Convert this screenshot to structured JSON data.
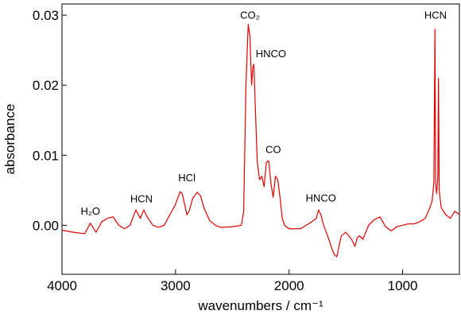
{
  "chart_data": {
    "type": "line",
    "xlabel": "wavenumbers / cm⁻¹",
    "ylabel": "absorbance",
    "x": [
      4000,
      3900,
      3800,
      3750,
      3700,
      3650,
      3600,
      3550,
      3500,
      3450,
      3400,
      3350,
      3310,
      3280,
      3250,
      3200,
      3150,
      3100,
      3050,
      3000,
      2960,
      2940,
      2920,
      2900,
      2880,
      2850,
      2810,
      2780,
      2750,
      2700,
      2650,
      2600,
      2500,
      2420,
      2400,
      2380,
      2360,
      2345,
      2330,
      2320,
      2310,
      2300,
      2280,
      2260,
      2240,
      2220,
      2200,
      2180,
      2160,
      2140,
      2120,
      2100,
      2080,
      2060,
      2040,
      2000,
      1950,
      1900,
      1850,
      1800,
      1760,
      1740,
      1720,
      1700,
      1650,
      1620,
      1600,
      1580,
      1560,
      1540,
      1500,
      1450,
      1420,
      1400,
      1380,
      1350,
      1300,
      1250,
      1200,
      1150,
      1100,
      1050,
      1000,
      950,
      900,
      850,
      800,
      760,
      740,
      725,
      715,
      710,
      700,
      690,
      684,
      678,
      660,
      620,
      580,
      540,
      500
    ],
    "series": [
      {
        "name": "absorbance",
        "color": "#e00000",
        "values": [
          -0.0007,
          -0.001,
          -0.0012,
          0.0003,
          -0.001,
          0.0005,
          0.001,
          0.0012,
          0.0,
          -0.0005,
          0.0,
          0.0022,
          0.001,
          0.0022,
          0.0012,
          0.0,
          -0.0003,
          0.0,
          0.0015,
          0.003,
          0.0048,
          0.0045,
          0.003,
          0.0015,
          0.002,
          0.0038,
          0.0047,
          0.0042,
          0.0025,
          0.0007,
          0.0,
          -0.0003,
          -0.0002,
          0.0,
          0.002,
          0.02,
          0.0287,
          0.027,
          0.02,
          0.0225,
          0.023,
          0.018,
          0.009,
          0.0065,
          0.007,
          0.0055,
          0.009,
          0.0092,
          0.006,
          0.004,
          0.007,
          0.0065,
          0.004,
          0.001,
          0.0,
          -0.0005,
          -0.0005,
          -0.0005,
          0.0,
          0.0005,
          0.001,
          0.0022,
          0.0015,
          0.0002,
          -0.002,
          -0.0035,
          -0.0042,
          -0.0045,
          -0.003,
          -0.0015,
          -0.001,
          -0.002,
          -0.003,
          -0.0018,
          -0.0015,
          -0.002,
          0.0,
          0.0008,
          0.0012,
          -0.0002,
          -0.0008,
          -0.0002,
          0.0,
          0.0002,
          0.0002,
          0.0005,
          0.001,
          0.0025,
          0.0035,
          0.006,
          0.028,
          0.006,
          0.0045,
          0.007,
          0.021,
          0.005,
          0.0025,
          0.0015,
          0.001,
          0.002,
          0.0015
        ]
      }
    ],
    "xlim": [
      4000,
      500
    ],
    "ylim": [
      -0.007,
      0.0316
    ],
    "xticks": [
      4000,
      3000,
      2000,
      1000
    ],
    "yticks": [
      {
        "value": 0,
        "label": "0.00"
      },
      {
        "value": 0.01,
        "label": "0.01"
      },
      {
        "value": 0.02,
        "label": "0.02"
      },
      {
        "value": 0.03,
        "label": "0.03"
      }
    ],
    "annotations": [
      {
        "text": "H₂O",
        "x": 3750,
        "y": 0.0015
      },
      {
        "text": "HCN",
        "x": 3300,
        "y": 0.0033
      },
      {
        "text": "HCl",
        "x": 2900,
        "y": 0.0063
      },
      {
        "text": "CO₂",
        "x": 2345,
        "y": 0.0295
      },
      {
        "text": "HNCO",
        "x": 2160,
        "y": 0.024
      },
      {
        "text": "CO",
        "x": 2140,
        "y": 0.0103
      },
      {
        "text": "HNCO",
        "x": 1720,
        "y": 0.0034
      },
      {
        "text": "HCN",
        "x": 710,
        "y": 0.0295
      }
    ]
  }
}
